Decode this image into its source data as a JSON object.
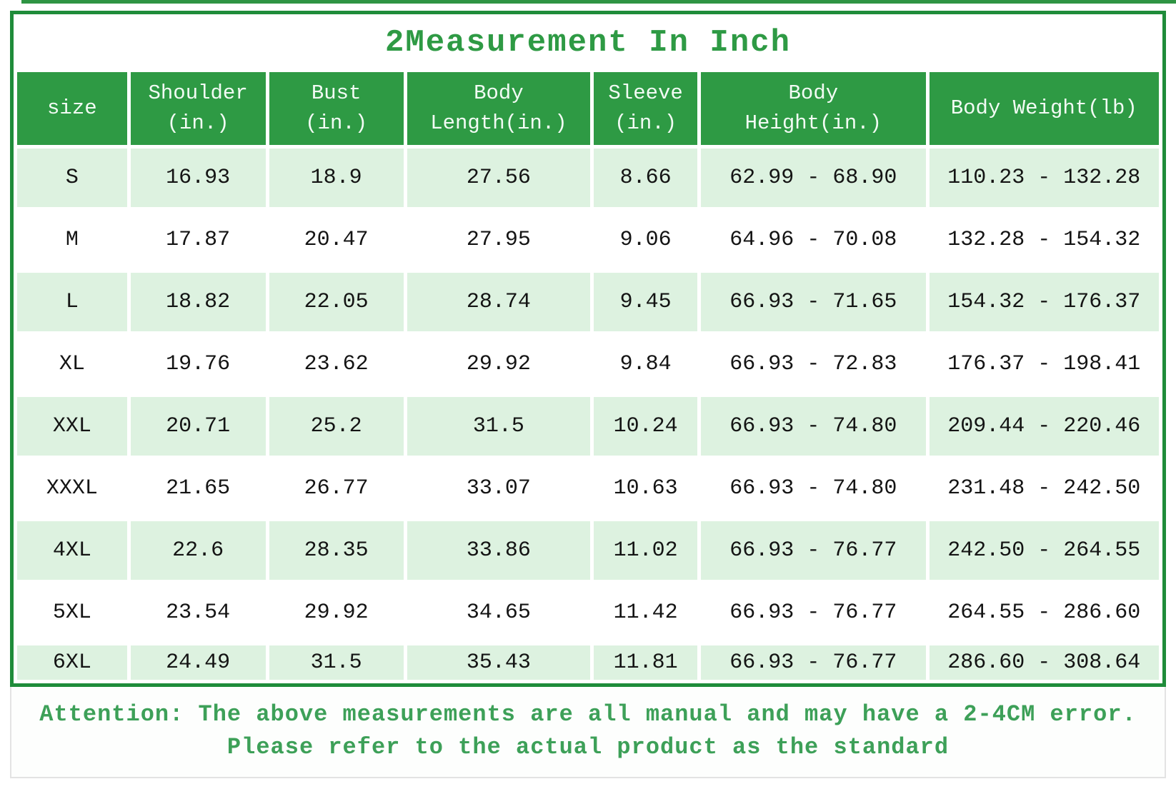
{
  "title": "2Measurement In Inch",
  "colors": {
    "header_green": "#2e9a44",
    "border_green": "#1f8c3a",
    "row_light_green": "#ddf2e0",
    "row_white": "#ffffff",
    "title_green": "#2e9a44",
    "footer_green": "#3da058",
    "header_text": "#ffffff",
    "cell_text": "#141414"
  },
  "table": {
    "headers": [
      "size",
      "Shoulder\n(in.)",
      "Bust\n(in.)",
      "Body\nLength(in.)",
      "Sleeve\n(in.)",
      "Body\nHeight(in.)",
      "Body Weight(lb)"
    ],
    "rows": [
      {
        "cells": [
          "S",
          "16.93",
          "18.9",
          "27.56",
          "8.66",
          "62.99 - 68.90",
          "110.23 - 132.28"
        ]
      },
      {
        "cells": [
          "M",
          "17.87",
          "20.47",
          "27.95",
          "9.06",
          "64.96 - 70.08",
          "132.28 - 154.32"
        ]
      },
      {
        "cells": [
          "L",
          "18.82",
          "22.05",
          "28.74",
          "9.45",
          "66.93 - 71.65",
          "154.32 - 176.37"
        ]
      },
      {
        "cells": [
          "XL",
          "19.76",
          "23.62",
          "29.92",
          "9.84",
          "66.93 - 72.83",
          "176.37 - 198.41"
        ]
      },
      {
        "cells": [
          "XXL",
          "20.71",
          "25.2",
          "31.5",
          "10.24",
          "66.93 - 74.80",
          "209.44 - 220.46"
        ]
      },
      {
        "cells": [
          "XXXL",
          "21.65",
          "26.77",
          "33.07",
          "10.63",
          "66.93 - 74.80",
          "231.48 - 242.50"
        ]
      },
      {
        "cells": [
          "4XL",
          "22.6",
          "28.35",
          "33.86",
          "11.02",
          "66.93 - 76.77",
          "242.50 - 264.55"
        ]
      },
      {
        "cells": [
          "5XL",
          "23.54",
          "29.92",
          "34.65",
          "11.42",
          "66.93 - 76.77",
          "264.55 - 286.60"
        ]
      },
      {
        "cells": [
          "6XL",
          "24.49",
          "31.5",
          "35.43",
          "11.81",
          "66.93 - 76.77",
          "286.60 - 308.64"
        ]
      }
    ]
  },
  "footer": {
    "line1": "Attention: The above measurements are all manual and may have a 2-4CM error.",
    "line2": "Please refer to the actual product as the standard"
  },
  "chart_data": {
    "type": "table",
    "title": "2Measurement In Inch",
    "columns": [
      "size",
      "Shoulder (in.)",
      "Bust (in.)",
      "Body Length (in.)",
      "Sleeve (in.)",
      "Body Height (in.)",
      "Body Weight (lb)"
    ],
    "rows": [
      [
        "S",
        16.93,
        18.9,
        27.56,
        8.66,
        "62.99 - 68.90",
        "110.23 - 132.28"
      ],
      [
        "M",
        17.87,
        20.47,
        27.95,
        9.06,
        "64.96 - 70.08",
        "132.28 - 154.32"
      ],
      [
        "L",
        18.82,
        22.05,
        28.74,
        9.45,
        "66.93 - 71.65",
        "154.32 - 176.37"
      ],
      [
        "XL",
        19.76,
        23.62,
        29.92,
        9.84,
        "66.93 - 72.83",
        "176.37 - 198.41"
      ],
      [
        "XXL",
        20.71,
        25.2,
        31.5,
        10.24,
        "66.93 - 74.80",
        "209.44 - 220.46"
      ],
      [
        "XXXL",
        21.65,
        26.77,
        33.07,
        10.63,
        "66.93 - 74.80",
        "231.48 - 242.50"
      ],
      [
        "4XL",
        22.6,
        28.35,
        33.86,
        11.02,
        "66.93 - 76.77",
        "242.50 - 264.55"
      ],
      [
        "5XL",
        23.54,
        29.92,
        34.65,
        11.42,
        "66.93 - 76.77",
        "264.55 - 286.60"
      ],
      [
        "6XL",
        24.49,
        31.5,
        35.43,
        11.81,
        "66.93 - 76.77",
        "286.60 - 308.64"
      ]
    ],
    "notes": [
      "Attention: The above measurements are all manual and may have a 2-4CM error.",
      "Please refer to the actual product as the standard"
    ]
  }
}
